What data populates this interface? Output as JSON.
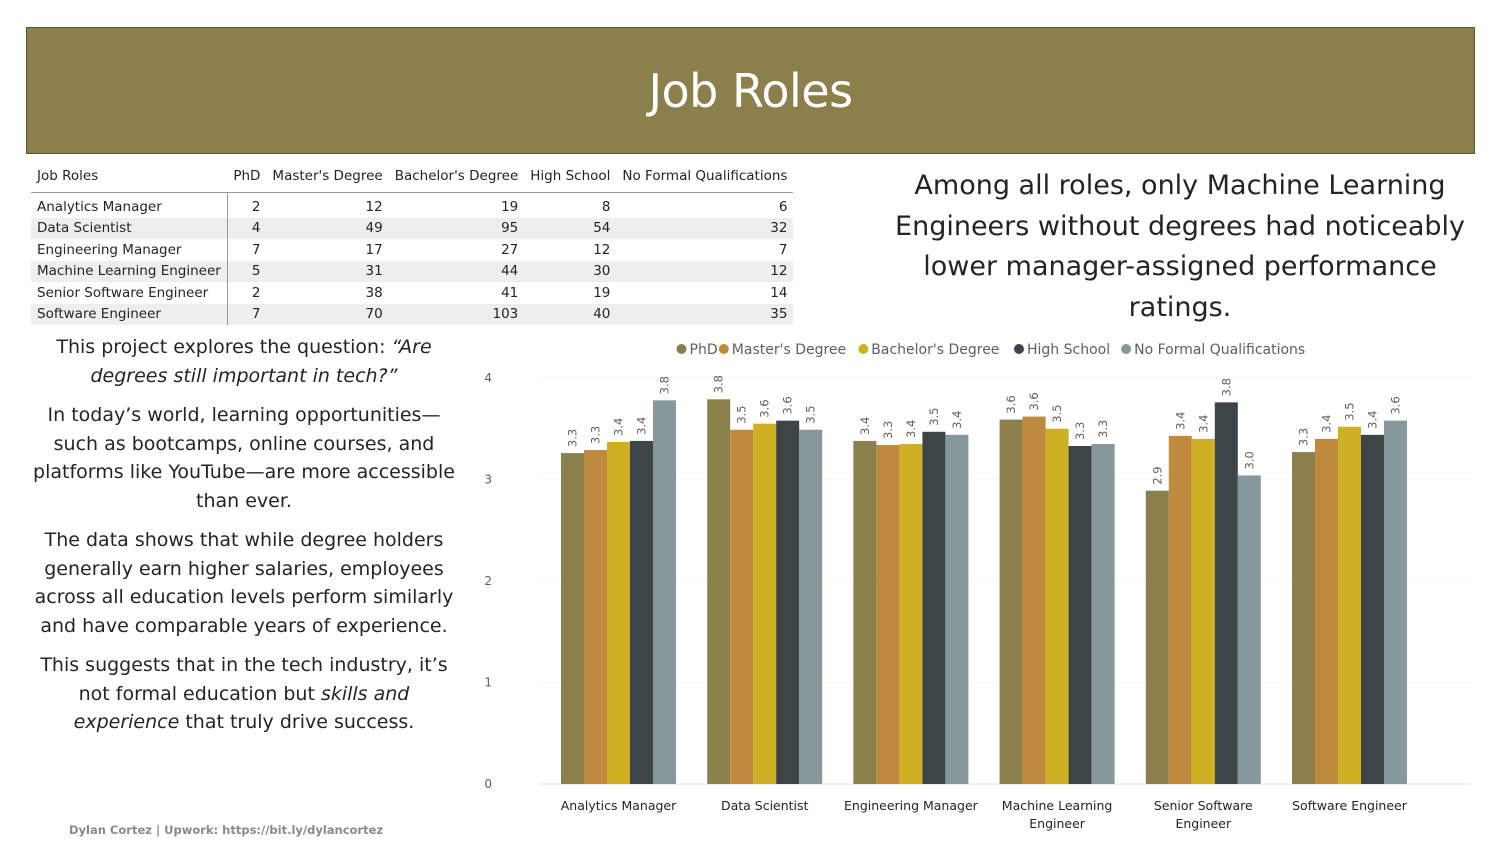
{
  "header": {
    "title": "Job Roles"
  },
  "table": {
    "columns": [
      "Job Roles",
      "PhD",
      "Master's Degree",
      "Bachelor's Degree",
      "High School",
      "No Formal Qualifications"
    ],
    "rows": [
      [
        "Analytics Manager",
        "2",
        "12",
        "19",
        "8",
        "6"
      ],
      [
        "Data Scientist",
        "4",
        "49",
        "95",
        "54",
        "32"
      ],
      [
        "Engineering Manager",
        "7",
        "17",
        "27",
        "12",
        "7"
      ],
      [
        "Machine Learning Engineer",
        "5",
        "31",
        "44",
        "30",
        "12"
      ],
      [
        "Senior Software Engineer",
        "2",
        "38",
        "41",
        "19",
        "14"
      ],
      [
        "Software Engineer",
        "7",
        "70",
        "103",
        "40",
        "35"
      ]
    ]
  },
  "headline": "Among all roles, only Machine Learning Engineers without degrees had noticeably lower manager-assigned performance ratings.",
  "narrative": {
    "p1_lead": "This project explores the question: ",
    "p1_quote": "“Are degrees still important in tech?”",
    "p2": "In today’s world, learning opportunities—such as bootcamps, online courses, and platforms like YouTube—are more accessible than ever.",
    "p3": "The data shows that while degree holders generally earn higher salaries, employees across all education levels perform similarly and have comparable years of experience.",
    "p4_a": "This suggests that in the tech industry, it’s not formal education but ",
    "p4_em1": "skills and experience",
    "p4_b": " that truly drive success."
  },
  "footer": "Dylan Cortez | Upwork: https://bit.ly/dylancortez",
  "colors": {
    "banner": "#8b7f4b",
    "phd": "#8b7f4b",
    "masters": "#c08a3e",
    "bachelors": "#cfb024",
    "high_school": "#3e4548",
    "no_formal": "#86989c"
  },
  "chart_data": {
    "type": "bar",
    "title": "",
    "xlabel": "",
    "ylabel": "",
    "ylim": [
      0,
      4
    ],
    "yticks": [
      0,
      1,
      2,
      3,
      4
    ],
    "grid": true,
    "legend": "top-center",
    "categories": [
      [
        "Analytics Manager"
      ],
      [
        "Data Scientist"
      ],
      [
        "Engineering Manager"
      ],
      [
        "Machine Learning",
        "Engineer"
      ],
      [
        "Senior Software",
        "Engineer"
      ],
      [
        "Software Engineer"
      ]
    ],
    "series": [
      {
        "name": "PhD",
        "color": "#8b7f4b",
        "values": [
          3.26,
          3.79,
          3.38,
          3.59,
          2.89,
          3.27
        ]
      },
      {
        "name": "Master's Degree",
        "color": "#c08a3e",
        "values": [
          3.29,
          3.49,
          3.34,
          3.62,
          3.43,
          3.4
        ]
      },
      {
        "name": "Bachelor's Degree",
        "color": "#cfb024",
        "values": [
          3.37,
          3.55,
          3.35,
          3.5,
          3.4,
          3.52
        ]
      },
      {
        "name": "High School",
        "color": "#3e4548",
        "values": [
          3.38,
          3.58,
          3.47,
          3.33,
          3.76,
          3.44
        ]
      },
      {
        "name": "No Formal Qualifications",
        "color": "#86989c",
        "values": [
          3.78,
          3.49,
          3.44,
          3.35,
          3.04,
          3.58
        ]
      }
    ],
    "data_labels": [
      [
        "3.3",
        "3.8",
        "3.4",
        "3.6",
        "2.9",
        "3.3"
      ],
      [
        "3.3",
        "3.5",
        "3.3",
        "3.6",
        "3.4",
        "3.4"
      ],
      [
        "3.4",
        "3.6",
        "3.4",
        "3.5",
        "3.4",
        "3.5"
      ],
      [
        "3.4",
        "3.6",
        "3.5",
        "3.3",
        "3.8",
        "3.4"
      ],
      [
        "3.8",
        "3.5",
        "3.4",
        "3.3",
        "3.0",
        "3.6"
      ]
    ]
  }
}
